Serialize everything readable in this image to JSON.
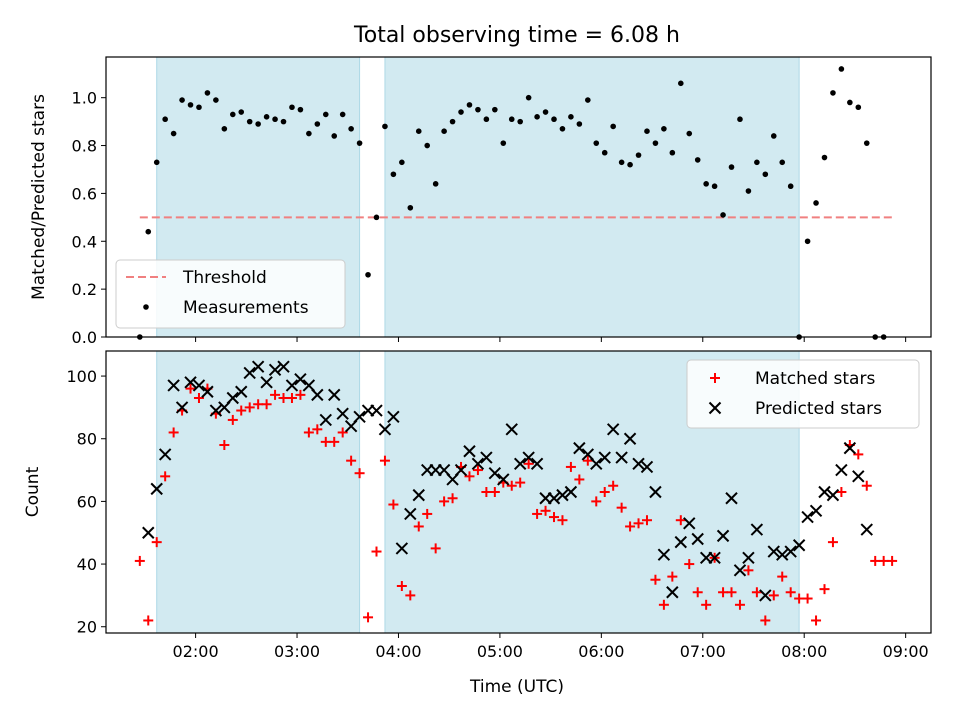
{
  "chart_data": {
    "title": "Total observing time = 6.08 h",
    "xlabel": "Time (UTC)",
    "x_ticks": [
      "02:00",
      "03:00",
      "04:00",
      "05:00",
      "06:00",
      "07:00",
      "08:00",
      "09:00"
    ],
    "xlim": [
      "01:07",
      "09:15"
    ],
    "shaded_intervals": [
      [
        "01:37",
        "03:37"
      ],
      [
        "03:52",
        "07:57"
      ]
    ],
    "colors": {
      "shade": "#add8e6",
      "threshold": "#f08080",
      "matched": "#ff0000",
      "predicted": "#000000",
      "measurements": "#000000"
    },
    "panels": [
      {
        "type": "scatter",
        "ylabel": "Matched/Predicted stars",
        "ylim": [
          0,
          1.17
        ],
        "y_ticks": [
          "0.0",
          "0.2",
          "0.4",
          "0.6",
          "0.8",
          "1.0"
        ],
        "legend": "lower-left",
        "threshold": {
          "name": "Threshold",
          "value": 0.5,
          "x": [
            "01:27",
            "08:52"
          ]
        },
        "series": [
          {
            "name": "Measurements",
            "x": [
              "01:27",
              "01:32",
              "01:37",
              "01:42",
              "01:47",
              "01:52",
              "01:57",
              "02:02",
              "02:07",
              "02:12",
              "02:17",
              "02:22",
              "02:27",
              "02:32",
              "02:37",
              "02:42",
              "02:47",
              "02:52",
              "02:57",
              "03:02",
              "03:07",
              "03:12",
              "03:17",
              "03:22",
              "03:27",
              "03:32",
              "03:37",
              "03:42",
              "03:47",
              "03:52",
              "03:57",
              "04:02",
              "04:07",
              "04:12",
              "04:17",
              "04:22",
              "04:27",
              "04:32",
              "04:37",
              "04:42",
              "04:47",
              "04:52",
              "04:57",
              "05:02",
              "05:07",
              "05:12",
              "05:17",
              "05:22",
              "05:27",
              "05:32",
              "05:37",
              "05:42",
              "05:47",
              "05:52",
              "05:57",
              "06:02",
              "06:07",
              "06:12",
              "06:17",
              "06:22",
              "06:27",
              "06:32",
              "06:37",
              "06:42",
              "06:47",
              "06:52",
              "06:57",
              "07:02",
              "07:07",
              "07:12",
              "07:17",
              "07:22",
              "07:27",
              "07:32",
              "07:37",
              "07:42",
              "07:47",
              "07:52",
              "07:57",
              "08:02",
              "08:07",
              "08:12",
              "08:17",
              "08:22",
              "08:27",
              "08:32",
              "08:37",
              "08:42",
              "08:47",
              "08:52"
            ],
            "y": [
              0.0,
              0.44,
              0.73,
              0.91,
              0.85,
              0.99,
              0.97,
              0.96,
              1.02,
              0.99,
              0.87,
              0.93,
              0.94,
              0.9,
              0.89,
              0.92,
              0.91,
              0.9,
              0.96,
              0.95,
              0.85,
              0.89,
              0.93,
              0.84,
              0.93,
              0.87,
              0.81,
              0.26,
              0.5,
              0.88,
              0.68,
              0.73,
              0.54,
              0.86,
              0.8,
              0.64,
              0.86,
              0.9,
              0.94,
              0.97,
              0.95,
              0.91,
              0.95,
              0.81,
              0.91,
              0.9,
              1.0,
              0.92,
              0.94,
              0.91,
              0.87,
              0.92,
              0.89,
              0.99,
              0.81,
              0.77,
              0.88,
              0.73,
              0.72,
              0.76,
              0.86,
              0.81,
              0.87,
              0.77,
              1.06,
              0.85,
              0.74,
              0.64,
              0.63,
              0.51,
              0.71,
              0.91,
              0.61,
              0.73,
              0.68,
              0.84,
              0.73,
              0.63,
              0.0,
              0.4,
              0.56,
              0.75,
              1.02,
              1.12,
              0.98,
              0.96,
              0.81,
              0.0,
              0.0,
              null
            ]
          }
        ]
      },
      {
        "type": "scatter",
        "ylabel": "Count",
        "ylim": [
          18,
          108
        ],
        "y_ticks": [
          "20",
          "40",
          "60",
          "80",
          "100"
        ],
        "legend": "top-right",
        "series": [
          {
            "name": "Matched stars",
            "x": [
              "01:27",
              "01:32",
              "01:37",
              "01:42",
              "01:47",
              "01:52",
              "01:57",
              "02:02",
              "02:07",
              "02:12",
              "02:17",
              "02:22",
              "02:27",
              "02:32",
              "02:37",
              "02:42",
              "02:47",
              "02:52",
              "02:57",
              "03:02",
              "03:07",
              "03:12",
              "03:17",
              "03:22",
              "03:27",
              "03:32",
              "03:37",
              "03:42",
              "03:47",
              "03:52",
              "03:57",
              "04:02",
              "04:07",
              "04:12",
              "04:17",
              "04:22",
              "04:27",
              "04:32",
              "04:37",
              "04:42",
              "04:47",
              "04:52",
              "04:57",
              "05:02",
              "05:07",
              "05:12",
              "05:17",
              "05:22",
              "05:27",
              "05:32",
              "05:37",
              "05:42",
              "05:47",
              "05:52",
              "05:57",
              "06:02",
              "06:07",
              "06:12",
              "06:17",
              "06:22",
              "06:27",
              "06:32",
              "06:37",
              "06:42",
              "06:47",
              "06:52",
              "06:57",
              "07:02",
              "07:07",
              "07:12",
              "07:17",
              "07:22",
              "07:27",
              "07:32",
              "07:37",
              "07:42",
              "07:47",
              "07:52",
              "07:57",
              "08:02",
              "08:07",
              "08:12",
              "08:17",
              "08:22",
              "08:27",
              "08:32",
              "08:37",
              "08:42",
              "08:47",
              "08:52"
            ],
            "y": [
              41,
              22,
              47,
              68,
              82,
              89,
              96,
              93,
              96,
              88,
              78,
              86,
              89,
              90,
              91,
              91,
              94,
              93,
              93,
              94,
              82,
              83,
              79,
              79,
              82,
              73,
              69,
              23,
              44,
              73,
              59,
              33,
              30,
              52,
              56,
              45,
              60,
              61,
              71,
              68,
              70,
              63,
              63,
              66,
              65,
              66,
              72,
              56,
              57,
              55,
              54,
              71,
              67,
              73,
              60,
              63,
              65,
              58,
              52,
              53,
              54,
              35,
              27,
              36,
              54,
              40,
              31,
              27,
              42,
              31,
              31,
              27,
              38,
              31,
              22,
              30,
              36,
              31,
              29,
              29,
              22,
              32,
              47,
              63,
              78,
              75,
              65,
              41,
              41,
              41
            ]
          },
          {
            "name": "Predicted stars",
            "x": [
              "01:32",
              "01:37",
              "01:42",
              "01:47",
              "01:52",
              "01:57",
              "02:02",
              "02:07",
              "02:12",
              "02:17",
              "02:22",
              "02:27",
              "02:32",
              "02:37",
              "02:42",
              "02:47",
              "02:52",
              "02:57",
              "03:02",
              "03:07",
              "03:12",
              "03:17",
              "03:22",
              "03:27",
              "03:32",
              "03:37",
              "03:42",
              "03:47",
              "03:52",
              "03:57",
              "04:02",
              "04:07",
              "04:12",
              "04:17",
              "04:22",
              "04:27",
              "04:32",
              "04:37",
              "04:42",
              "04:47",
              "04:52",
              "04:57",
              "05:02",
              "05:07",
              "05:12",
              "05:17",
              "05:22",
              "05:27",
              "05:32",
              "05:37",
              "05:42",
              "05:47",
              "05:52",
              "05:57",
              "06:02",
              "06:07",
              "06:12",
              "06:17",
              "06:22",
              "06:27",
              "06:32",
              "06:37",
              "06:42",
              "06:47",
              "06:52",
              "06:57",
              "07:02",
              "07:07",
              "07:12",
              "07:17",
              "07:22",
              "07:27",
              "07:32",
              "07:37",
              "07:42",
              "07:47",
              "07:52",
              "07:57",
              "08:02",
              "08:07",
              "08:12",
              "08:17",
              "08:22",
              "08:27",
              "08:32",
              "08:37",
              "08:42"
            ],
            "y": [
              50,
              64,
              75,
              97,
              90,
              98,
              97,
              95,
              89,
              90,
              93,
              95,
              101,
              103,
              98,
              102,
              103,
              97,
              99,
              97,
              94,
              86,
              94,
              88,
              84,
              87,
              89,
              89,
              83,
              87,
              45,
              56,
              62,
              70,
              70,
              70,
              67,
              70,
              76,
              72,
              74,
              69,
              67,
              83,
              72,
              74,
              72,
              61,
              61,
              62,
              63,
              77,
              75,
              72,
              74,
              83,
              74,
              80,
              72,
              71,
              63,
              43,
              31,
              47,
              53,
              48,
              42,
              42,
              49,
              61,
              38,
              42,
              51,
              30,
              44,
              43,
              44,
              46,
              55,
              57,
              63,
              62,
              70,
              77,
              68,
              51,
              null
            ]
          }
        ]
      }
    ]
  }
}
